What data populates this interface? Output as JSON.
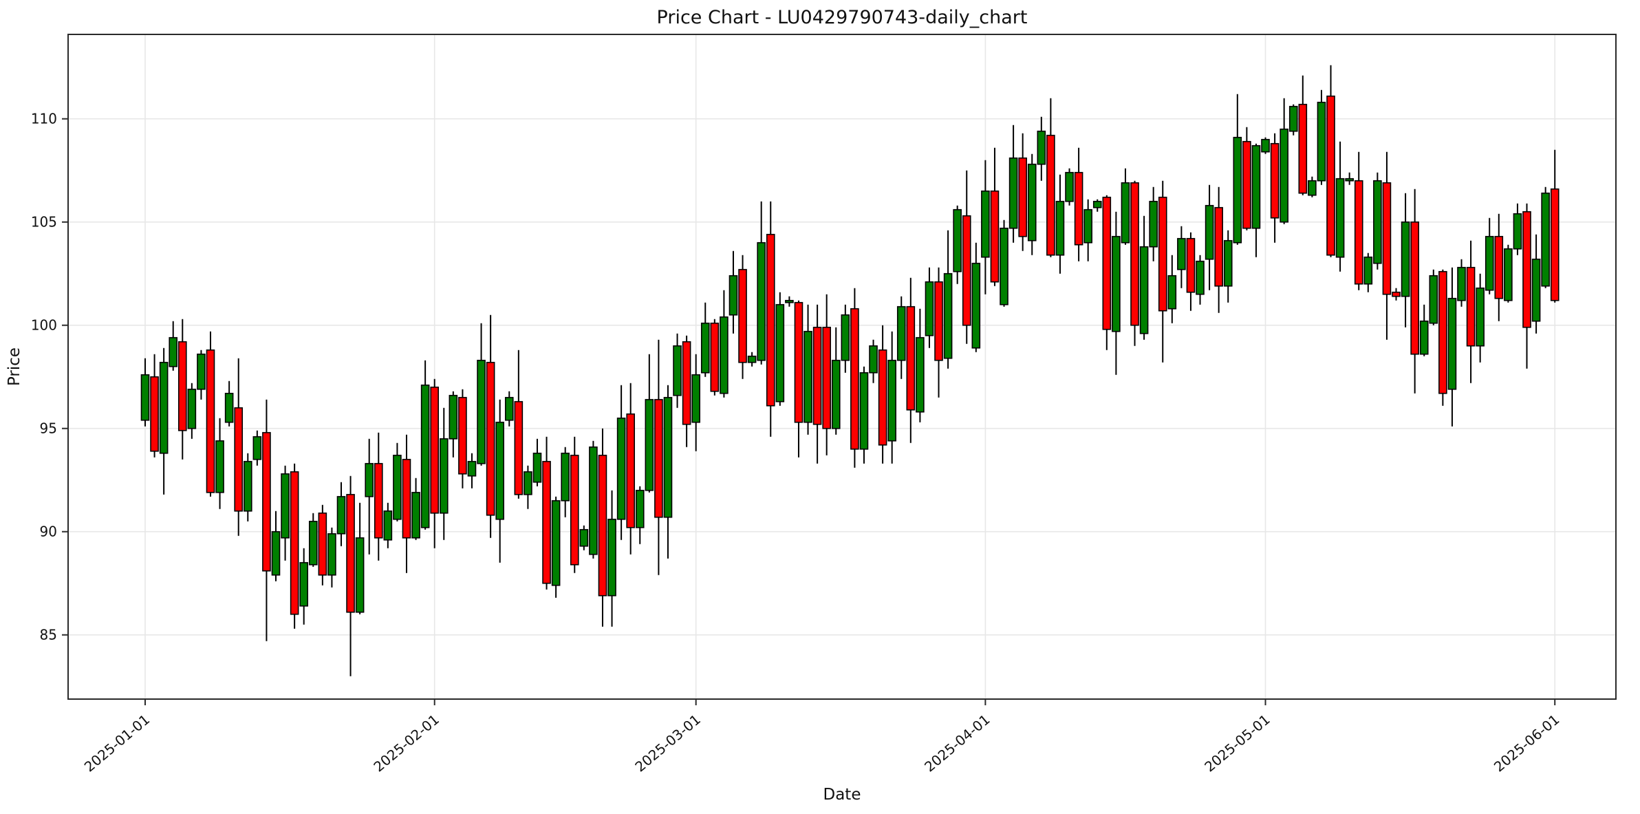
{
  "labels": {
    "title": "Price Chart - LU0429790743-daily_chart",
    "xlabel": "Date",
    "ylabel": "Price"
  },
  "colors": {
    "up": "#008000",
    "down": "#fe0000",
    "wick": "#000000",
    "candle_edge": "#000000",
    "grid": "#e7e7e7",
    "spine": "#2a2a2a",
    "background": "#ffffff",
    "text": "#111111"
  },
  "chart_data": {
    "type": "candlestick",
    "title": "Price Chart - LU0429790743-daily_chart",
    "xlabel": "Date",
    "ylabel": "Price",
    "legend": "none",
    "grid": "on",
    "ylim": [
      81.8,
      114.2
    ],
    "y_ticks": [
      85,
      90,
      95,
      100,
      105,
      110
    ],
    "x_tick_labels": [
      "2025-01-01",
      "2025-02-01",
      "2025-03-01",
      "2025-04-01",
      "2025-05-01",
      "2025-06-01"
    ],
    "x_tick_day_index": [
      0,
      31,
      59,
      90,
      120,
      151
    ],
    "num_candles": 152,
    "x_note": "one candle per consecutive day, day index 0 = 2025-01-01",
    "open": [
      95.4,
      97.5,
      93.8,
      98.0,
      99.2,
      95.0,
      96.9,
      98.8,
      91.9,
      95.3,
      96.0,
      91.0,
      93.5,
      94.8,
      87.9,
      89.7,
      92.9,
      86.4,
      88.4,
      90.9,
      87.9,
      89.9,
      91.8,
      86.1,
      91.7,
      93.3,
      89.6,
      90.6,
      93.5,
      89.7,
      90.2,
      97.0,
      90.9,
      94.5,
      96.5,
      92.7,
      93.3,
      98.2,
      90.6,
      95.4,
      96.3,
      91.8,
      92.4,
      93.4,
      87.4,
      91.5,
      93.7,
      89.3,
      88.9,
      93.7,
      86.9,
      90.6,
      95.7,
      90.2,
      92.0,
      96.4,
      90.7,
      96.6,
      99.2,
      95.3,
      97.7,
      100.1,
      96.7,
      100.5,
      102.7,
      98.2,
      98.3,
      104.4,
      96.3,
      101.1,
      101.1,
      95.3,
      99.9,
      99.9,
      95.0,
      98.3,
      100.8,
      94.0,
      97.7,
      98.8,
      94.4,
      98.3,
      100.9,
      95.8,
      99.5,
      102.1,
      98.4,
      102.6,
      105.3,
      98.9,
      103.3,
      106.5,
      101.0,
      104.7,
      108.1,
      104.1,
      107.8,
      109.2,
      103.4,
      106.0,
      107.4,
      104.0,
      105.7,
      106.2,
      99.7,
      104.0,
      106.9,
      99.6,
      103.8,
      106.2,
      100.8,
      102.7,
      104.2,
      101.5,
      103.2,
      105.7,
      101.9,
      104.0,
      108.9,
      104.7,
      108.4,
      108.8,
      105.0,
      109.4,
      110.7,
      106.3,
      107.0,
      111.1,
      103.3,
      107.0,
      107.0,
      102.0,
      103.0,
      106.9,
      101.6,
      101.4,
      105.0,
      98.6,
      100.1,
      102.6,
      96.9,
      101.2,
      102.8,
      99.0,
      101.7,
      104.3,
      101.2,
      103.7,
      105.5,
      100.2,
      101.9,
      106.6
    ],
    "high": [
      98.4,
      98.6,
      98.9,
      100.2,
      100.3,
      97.2,
      98.8,
      99.7,
      95.5,
      97.3,
      98.4,
      93.8,
      94.9,
      96.4,
      91.0,
      93.2,
      93.3,
      89.2,
      90.9,
      91.3,
      90.2,
      92.4,
      92.7,
      91.4,
      94.5,
      94.8,
      91.4,
      94.3,
      94.7,
      92.6,
      98.3,
      97.4,
      96.0,
      96.8,
      96.9,
      93.8,
      100.1,
      100.5,
      96.4,
      96.8,
      98.8,
      93.2,
      94.5,
      94.6,
      91.7,
      94.1,
      94.6,
      90.3,
      94.4,
      95.0,
      92.0,
      97.1,
      97.2,
      92.2,
      98.6,
      99.3,
      97.1,
      99.6,
      99.5,
      98.6,
      101.1,
      100.3,
      101.7,
      103.6,
      103.4,
      98.7,
      106.0,
      106.0,
      101.6,
      101.4,
      101.2,
      101.0,
      101.0,
      101.5,
      99.9,
      101.0,
      101.8,
      98.0,
      99.3,
      100.0,
      99.7,
      101.4,
      102.3,
      100.8,
      102.8,
      102.8,
      104.6,
      105.8,
      107.5,
      104.0,
      108.0,
      108.6,
      105.1,
      109.7,
      109.3,
      108.3,
      110.1,
      111.0,
      107.3,
      107.6,
      108.6,
      106.1,
      106.1,
      106.3,
      105.5,
      107.6,
      107.0,
      105.3,
      106.7,
      107.0,
      103.4,
      104.8,
      104.5,
      103.4,
      106.8,
      106.7,
      104.6,
      111.2,
      109.6,
      108.8,
      109.1,
      109.3,
      111.0,
      110.7,
      112.1,
      107.2,
      111.4,
      112.6,
      108.9,
      107.4,
      108.4,
      103.5,
      107.4,
      108.4,
      101.8,
      106.4,
      106.6,
      101.0,
      102.7,
      102.7,
      102.8,
      103.2,
      104.1,
      102.5,
      105.2,
      105.4,
      103.9,
      105.9,
      105.9,
      104.4,
      106.7,
      108.5
    ],
    "low": [
      95.1,
      93.6,
      91.8,
      97.8,
      93.5,
      94.5,
      96.4,
      91.7,
      91.1,
      95.1,
      89.8,
      90.5,
      93.2,
      84.7,
      87.6,
      88.6,
      85.3,
      85.5,
      88.3,
      87.4,
      87.3,
      89.3,
      83.0,
      86.0,
      88.9,
      88.6,
      89.2,
      90.5,
      88.0,
      89.6,
      90.1,
      89.2,
      89.6,
      93.6,
      92.1,
      92.1,
      93.2,
      89.7,
      88.5,
      95.1,
      91.6,
      91.1,
      92.2,
      87.2,
      86.8,
      90.7,
      88.0,
      89.1,
      88.7,
      85.4,
      85.4,
      89.6,
      88.9,
      89.4,
      91.9,
      87.9,
      88.7,
      96.0,
      94.1,
      93.9,
      97.5,
      96.6,
      96.5,
      99.6,
      97.4,
      98.0,
      98.1,
      94.6,
      96.1,
      100.9,
      93.6,
      94.7,
      93.3,
      93.7,
      94.7,
      97.7,
      93.1,
      93.3,
      97.2,
      93.3,
      93.3,
      97.4,
      94.3,
      95.3,
      98.9,
      96.5,
      97.9,
      102.0,
      99.1,
      98.7,
      101.5,
      101.9,
      100.9,
      104.0,
      103.6,
      103.4,
      107.0,
      103.3,
      102.5,
      105.8,
      103.1,
      103.1,
      105.5,
      98.8,
      97.6,
      103.9,
      99.0,
      99.3,
      103.1,
      98.2,
      100.1,
      101.8,
      100.7,
      101.0,
      101.7,
      100.6,
      101.1,
      103.9,
      104.6,
      103.3,
      108.3,
      104.0,
      104.9,
      109.2,
      106.3,
      106.2,
      106.8,
      103.3,
      102.6,
      106.8,
      101.7,
      101.6,
      102.7,
      99.3,
      101.2,
      99.9,
      96.7,
      98.5,
      100.0,
      96.1,
      95.1,
      100.9,
      97.2,
      98.2,
      101.5,
      100.2,
      101.1,
      103.4,
      97.9,
      99.6,
      101.8,
      101.1
    ],
    "close": [
      97.6,
      93.9,
      98.2,
      99.4,
      94.9,
      96.9,
      98.6,
      91.9,
      94.4,
      96.7,
      91.0,
      93.4,
      94.6,
      88.1,
      90.0,
      92.8,
      86.0,
      88.5,
      90.5,
      87.9,
      89.9,
      91.7,
      86.1,
      89.7,
      93.3,
      89.7,
      91.0,
      93.7,
      89.7,
      91.9,
      97.1,
      90.9,
      94.5,
      96.6,
      92.8,
      93.4,
      98.3,
      90.8,
      95.3,
      96.5,
      91.8,
      92.9,
      93.8,
      87.5,
      91.5,
      93.8,
      88.4,
      90.1,
      94.1,
      86.9,
      90.6,
      95.5,
      90.2,
      92.0,
      96.4,
      90.7,
      96.5,
      99.0,
      95.2,
      97.6,
      100.1,
      96.8,
      100.4,
      102.4,
      98.2,
      98.5,
      104.0,
      96.1,
      101.0,
      101.2,
      95.3,
      99.7,
      95.2,
      95.0,
      98.3,
      100.5,
      94.0,
      97.7,
      99.0,
      94.2,
      98.3,
      100.9,
      95.9,
      99.4,
      102.1,
      98.3,
      102.5,
      105.6,
      100.0,
      103.0,
      106.5,
      102.1,
      104.7,
      108.1,
      104.3,
      107.8,
      109.4,
      103.4,
      106.0,
      107.4,
      103.9,
      105.6,
      106.0,
      99.8,
      104.3,
      106.9,
      100.0,
      103.8,
      106.0,
      100.7,
      102.4,
      104.2,
      101.6,
      103.1,
      105.8,
      101.9,
      104.1,
      109.1,
      104.7,
      108.7,
      109.0,
      105.2,
      109.5,
      110.6,
      106.4,
      107.0,
      110.8,
      103.4,
      107.1,
      107.1,
      102.0,
      103.3,
      107.0,
      101.5,
      101.4,
      105.0,
      98.6,
      100.2,
      102.4,
      96.7,
      101.3,
      102.8,
      99.0,
      101.8,
      104.3,
      101.3,
      103.7,
      105.4,
      99.9,
      103.2,
      106.4,
      101.2
    ]
  }
}
